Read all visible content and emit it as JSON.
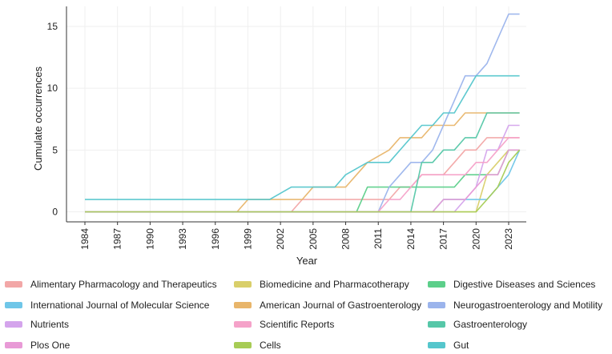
{
  "chart_data": {
    "type": "line",
    "title": "",
    "xlabel": "Year",
    "ylabel": "Cumulate occurrences",
    "xlim": [
      1984,
      2024
    ],
    "ylim": [
      -0.5,
      16.5
    ],
    "x_ticks": [
      1984,
      1987,
      1990,
      1993,
      1996,
      1999,
      2002,
      2005,
      2008,
      2011,
      2014,
      2017,
      2020,
      2023
    ],
    "y_ticks": [
      0,
      5,
      10,
      15
    ],
    "grid": true,
    "legend_position": "bottom",
    "series": [
      {
        "name": "Alimentary Pharmacology and Therapeutics",
        "color": "#f2a7a7",
        "points": [
          [
            1984,
            0
          ],
          [
            2003,
            0
          ],
          [
            2004,
            1
          ],
          [
            2012,
            1
          ],
          [
            2013,
            2
          ],
          [
            2014,
            2
          ],
          [
            2015,
            3
          ],
          [
            2017,
            3
          ],
          [
            2018,
            4
          ],
          [
            2019,
            5
          ],
          [
            2020,
            5
          ],
          [
            2021,
            6
          ],
          [
            2024,
            6
          ]
        ]
      },
      {
        "name": "Biomedicine and Pharmacotherapy",
        "color": "#d9cf6a",
        "points": [
          [
            1984,
            0
          ],
          [
            2020,
            0
          ],
          [
            2021,
            3
          ],
          [
            2022,
            4
          ],
          [
            2023,
            5
          ],
          [
            2024,
            5
          ]
        ]
      },
      {
        "name": "Digestive Diseases and Sciences",
        "color": "#5ccf8a",
        "points": [
          [
            1984,
            0
          ],
          [
            2009,
            0
          ],
          [
            2010,
            2
          ],
          [
            2018,
            2
          ],
          [
            2019,
            3
          ],
          [
            2022,
            3
          ],
          [
            2023,
            5
          ],
          [
            2024,
            5
          ]
        ]
      },
      {
        "name": "International Journal of Molecular Science",
        "color": "#6fc6e8",
        "points": [
          [
            1984,
            0
          ],
          [
            2016,
            0
          ],
          [
            2017,
            1
          ],
          [
            2021,
            1
          ],
          [
            2022,
            2
          ],
          [
            2023,
            3
          ],
          [
            2024,
            5
          ]
        ]
      },
      {
        "name": "American Journal of Gastroenterology",
        "color": "#e8b56a",
        "points": [
          [
            1984,
            0
          ],
          [
            1998,
            0
          ],
          [
            1999,
            1
          ],
          [
            2004,
            1
          ],
          [
            2005,
            2
          ],
          [
            2008,
            2
          ],
          [
            2009,
            3
          ],
          [
            2010,
            4
          ],
          [
            2012,
            5
          ],
          [
            2013,
            6
          ],
          [
            2015,
            6
          ],
          [
            2016,
            7
          ],
          [
            2018,
            7
          ],
          [
            2019,
            8
          ],
          [
            2024,
            8
          ]
        ]
      },
      {
        "name": "Neurogastroenterology and Motility",
        "color": "#9bb4ec",
        "points": [
          [
            1984,
            0
          ],
          [
            2011,
            0
          ],
          [
            2012,
            2
          ],
          [
            2013,
            3
          ],
          [
            2014,
            4
          ],
          [
            2015,
            4
          ],
          [
            2016,
            5
          ],
          [
            2017,
            7
          ],
          [
            2018,
            9
          ],
          [
            2019,
            11
          ],
          [
            2020,
            11
          ],
          [
            2021,
            12
          ],
          [
            2022,
            14
          ],
          [
            2023,
            16
          ],
          [
            2024,
            16
          ]
        ]
      },
      {
        "name": "Nutrients",
        "color": "#d4a4ec",
        "points": [
          [
            1984,
            0
          ],
          [
            2018,
            0
          ],
          [
            2019,
            1
          ],
          [
            2020,
            2
          ],
          [
            2021,
            5
          ],
          [
            2022,
            5
          ],
          [
            2023,
            7
          ],
          [
            2024,
            7
          ]
        ]
      },
      {
        "name": "Scientific Reports",
        "color": "#f5a2c9",
        "points": [
          [
            1984,
            0
          ],
          [
            2011,
            0
          ],
          [
            2012,
            1
          ],
          [
            2013,
            1
          ],
          [
            2014,
            2
          ],
          [
            2015,
            3
          ],
          [
            2019,
            3
          ],
          [
            2020,
            4
          ],
          [
            2021,
            4
          ],
          [
            2022,
            5
          ],
          [
            2023,
            6
          ],
          [
            2024,
            6
          ]
        ]
      },
      {
        "name": "Gastroenterology",
        "color": "#56c7a8",
        "points": [
          [
            1984,
            0
          ],
          [
            2014,
            0
          ],
          [
            2015,
            4
          ],
          [
            2016,
            4
          ],
          [
            2017,
            5
          ],
          [
            2018,
            5
          ],
          [
            2019,
            6
          ],
          [
            2020,
            6
          ],
          [
            2021,
            8
          ],
          [
            2024,
            8
          ]
        ]
      },
      {
        "name": "Plos One",
        "color": "#e89ad6",
        "points": [
          [
            1984,
            0
          ],
          [
            2016,
            0
          ],
          [
            2017,
            1
          ],
          [
            2019,
            1
          ],
          [
            2020,
            2
          ],
          [
            2021,
            3
          ],
          [
            2022,
            3
          ],
          [
            2023,
            5
          ],
          [
            2024,
            5
          ]
        ]
      },
      {
        "name": "Cells",
        "color": "#a7cc55",
        "points": [
          [
            1984,
            0
          ],
          [
            2020,
            0
          ],
          [
            2021,
            1
          ],
          [
            2022,
            2
          ],
          [
            2023,
            4
          ],
          [
            2024,
            5
          ]
        ]
      },
      {
        "name": "Gut",
        "color": "#55c6cc",
        "points": [
          [
            1984,
            1
          ],
          [
            2000,
            1
          ],
          [
            2001,
            1
          ],
          [
            2003,
            2
          ],
          [
            2006,
            2
          ],
          [
            2007,
            2
          ],
          [
            2008,
            3
          ],
          [
            2010,
            4
          ],
          [
            2012,
            4
          ],
          [
            2014,
            6
          ],
          [
            2015,
            7
          ],
          [
            2016,
            7
          ],
          [
            2017,
            8
          ],
          [
            2018,
            8
          ],
          [
            2020,
            11
          ],
          [
            2024,
            11
          ]
        ]
      }
    ]
  }
}
